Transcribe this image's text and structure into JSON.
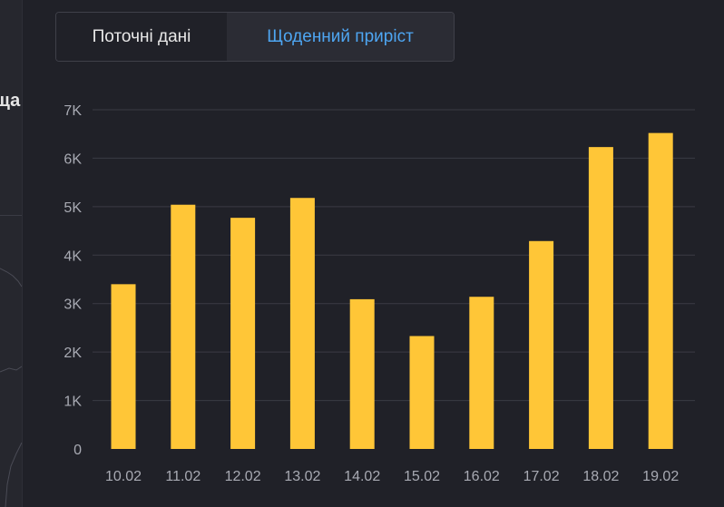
{
  "sidebar": {
    "label": "ща"
  },
  "tabs": [
    {
      "label": "Поточні дані",
      "active": false
    },
    {
      "label": "Щоденний приріст",
      "active": true
    }
  ],
  "colors": {
    "bar": "#ffc637",
    "background": "#202128",
    "active_tab_text": "#4ea6f2",
    "grid": "#3a3b44",
    "axis_text": "#a8aab3"
  },
  "chart_data": {
    "type": "bar",
    "categories": [
      "10.02",
      "11.02",
      "12.02",
      "13.02",
      "14.02",
      "15.02",
      "16.02",
      "17.02",
      "18.02",
      "19.02"
    ],
    "values": [
      3400,
      5040,
      4770,
      5180,
      3090,
      2330,
      3140,
      4290,
      6230,
      6520
    ],
    "ylim": [
      0,
      7000
    ],
    "yticks": [
      0,
      1000,
      2000,
      3000,
      4000,
      5000,
      6000,
      7000
    ],
    "ytick_labels": [
      "0",
      "1K",
      "2K",
      "3K",
      "4K",
      "5K",
      "6K",
      "7K"
    ],
    "grid": true
  }
}
